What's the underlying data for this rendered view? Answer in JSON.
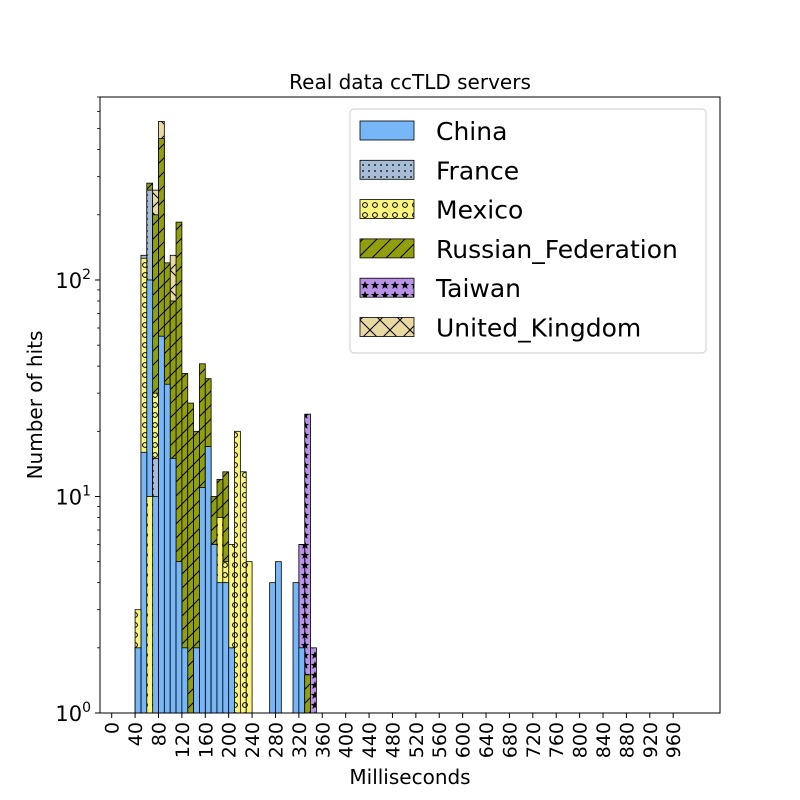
{
  "chart_data": {
    "type": "bar",
    "title": "Real data ccTLD servers",
    "xlabel": "Milliseconds",
    "ylabel": "Number of hits",
    "yscale": "log",
    "ylim": [
      1,
      700
    ],
    "xlim": [
      -20,
      1040
    ],
    "bin_width": 10,
    "stacked": true,
    "legend_position": "top-right",
    "grid": false,
    "x_ticks": [
      0,
      40,
      80,
      120,
      160,
      200,
      240,
      280,
      320,
      360,
      400,
      440,
      480,
      520,
      560,
      600,
      640,
      680,
      720,
      760,
      800,
      840,
      880,
      920,
      960
    ],
    "y_ticks": [
      {
        "value": 1,
        "base": "10",
        "exp": "0"
      },
      {
        "value": 10,
        "base": "10",
        "exp": "1"
      },
      {
        "value": 100,
        "base": "10",
        "exp": "2"
      }
    ],
    "series": [
      {
        "name": "China",
        "color": "#78b7f7",
        "pattern": "none",
        "bins": [
          [
            40,
            2
          ],
          [
            50,
            16
          ],
          [
            60,
            100
          ],
          [
            70,
            10
          ],
          [
            80,
            55
          ],
          [
            90,
            33
          ],
          [
            100,
            15
          ],
          [
            110,
            5
          ],
          [
            120,
            2
          ],
          [
            130,
            1
          ],
          [
            140,
            2
          ],
          [
            150,
            11
          ],
          [
            160,
            17
          ],
          [
            170,
            6
          ],
          [
            180,
            4
          ],
          [
            190,
            4
          ],
          [
            200,
            2
          ],
          [
            270,
            4
          ],
          [
            280,
            5
          ],
          [
            310,
            4
          ],
          [
            320,
            2
          ],
          [
            330,
            1.5
          ]
        ]
      },
      {
        "name": "France",
        "color": "#a7bdd5",
        "pattern": "dots",
        "bins": [
          [
            50,
            130
          ],
          [
            60,
            260
          ],
          [
            70,
            15
          ],
          [
            80,
            1
          ],
          [
            90,
            1
          ]
        ]
      },
      {
        "name": "Mexico",
        "color": "#fbf57d",
        "pattern": "circles",
        "bins": [
          [
            40,
            3
          ],
          [
            50,
            126
          ],
          [
            60,
            10
          ],
          [
            70,
            30
          ],
          [
            80,
            1
          ],
          [
            90,
            1
          ],
          [
            180,
            8
          ],
          [
            190,
            5
          ],
          [
            200,
            6
          ],
          [
            210,
            20
          ],
          [
            220,
            13
          ],
          [
            230,
            5
          ]
        ]
      },
      {
        "name": "Russian_Federation",
        "color": "#919e0e",
        "pattern": "hatch",
        "bins": [
          [
            60,
            280
          ],
          [
            70,
            200
          ],
          [
            80,
            450
          ],
          [
            90,
            120
          ],
          [
            100,
            80
          ],
          [
            110,
            185
          ],
          [
            120,
            37
          ],
          [
            130,
            27
          ],
          [
            140,
            20
          ],
          [
            150,
            41
          ],
          [
            160,
            35
          ],
          [
            170,
            10
          ],
          [
            180,
            12
          ],
          [
            190,
            13
          ],
          [
            320,
            6
          ],
          [
            330,
            1.5
          ]
        ]
      },
      {
        "name": "Taiwan",
        "color": "#b993e6",
        "pattern": "stars",
        "bins": [
          [
            320,
            6
          ],
          [
            330,
            24
          ],
          [
            340,
            2
          ]
        ]
      },
      {
        "name": "United_Kingdom",
        "color": "#e8d9a2",
        "pattern": "cross",
        "bins": [
          [
            70,
            260
          ],
          [
            80,
            540
          ],
          [
            100,
            130
          ]
        ]
      }
    ]
  }
}
